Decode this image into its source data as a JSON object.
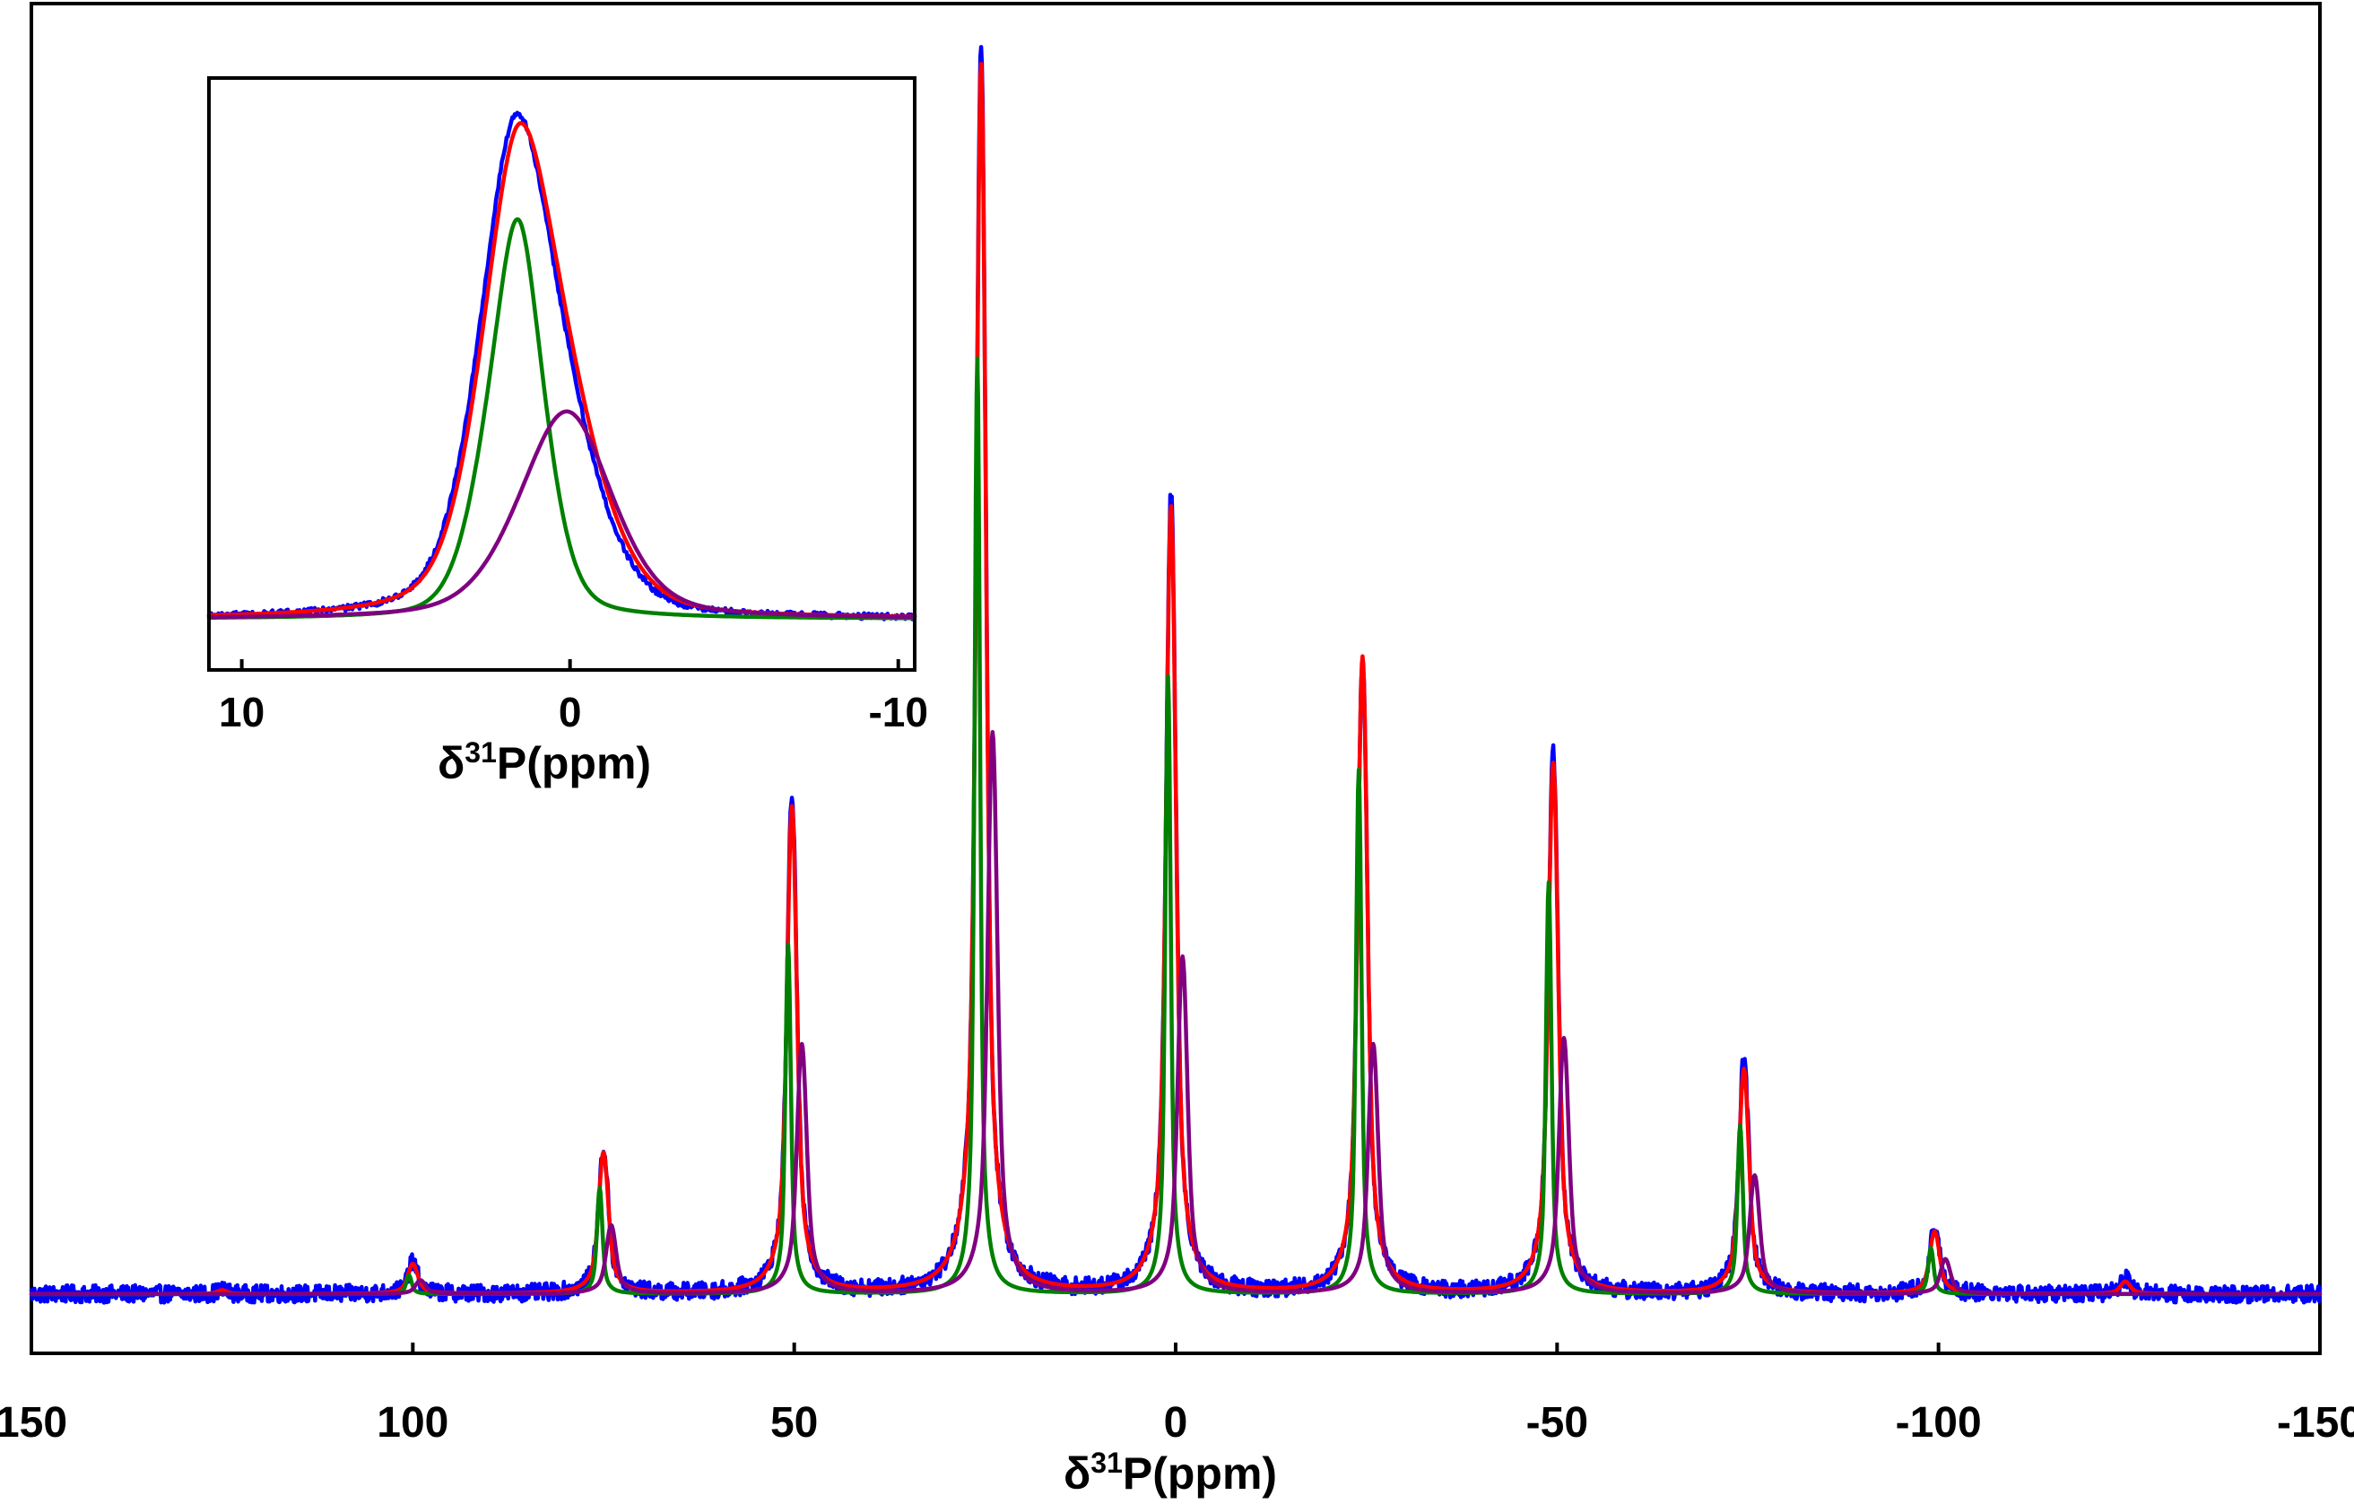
{
  "chart_data": [
    {
      "id": "main",
      "type": "line",
      "title": "",
      "xlabel": {
        "delta": "δ",
        "sup": "31",
        "rest": "P(ppm)"
      },
      "ylabel": "",
      "xlim": [
        150,
        -150
      ],
      "ylim": [
        -0.02,
        1.03
      ],
      "x_ticks": [
        150,
        100,
        50,
        0,
        -50,
        -100,
        -150
      ],
      "x_tick_labels": [
        "150",
        "100",
        "50",
        "0",
        "-50",
        "-100",
        "-150"
      ],
      "grid": false,
      "legend": "none",
      "series": [
        {
          "name": "blue",
          "color": "#0000ff",
          "noise": 0.007,
          "width_scale": 1.0,
          "peaks": [
            [
              125,
              0.003
            ],
            [
              100,
              0.025
            ],
            [
              75,
              0.115
            ],
            [
              50.3,
              0.4
            ],
            [
              25.5,
              1.0
            ],
            [
              0.6,
              0.64
            ],
            [
              -24.5,
              0.51
            ],
            [
              -49.5,
              0.435
            ],
            [
              -74.5,
              0.19
            ],
            [
              -99.5,
              0.055
            ],
            [
              -124.5,
              0.012
            ]
          ]
        },
        {
          "name": "red",
          "color": "#ff0000",
          "noise": 0.0,
          "width_scale": 1.0,
          "peaks": [
            [
              125,
              0.003
            ],
            [
              100,
              0.024
            ],
            [
              75,
              0.113
            ],
            [
              50.3,
              0.39
            ],
            [
              25.5,
              0.985
            ],
            [
              0.6,
              0.63
            ],
            [
              -24.5,
              0.51
            ],
            [
              -49.5,
              0.425
            ],
            [
              -74.5,
              0.18
            ],
            [
              -99.5,
              0.05
            ],
            [
              -124.5,
              0.01
            ]
          ]
        },
        {
          "name": "green",
          "color": "#008000",
          "noise": 0.0,
          "width_scale": 0.55,
          "peaks": [
            [
              100.5,
              0.015
            ],
            [
              75.5,
              0.085
            ],
            [
              50.8,
              0.28
            ],
            [
              26.0,
              0.75
            ],
            [
              1.0,
              0.495
            ],
            [
              -24.0,
              0.42
            ],
            [
              -48.9,
              0.33
            ],
            [
              -74.0,
              0.135
            ],
            [
              -99.0,
              0.037
            ]
          ]
        },
        {
          "name": "purple",
          "color": "#800080",
          "noise": 0.0,
          "width_scale": 1.0,
          "peaks": [
            [
              99.0,
              0.011
            ],
            [
              74.0,
              0.055
            ],
            [
              49.0,
              0.2
            ],
            [
              24.0,
              0.45
            ],
            [
              -0.9,
              0.27
            ],
            [
              -25.9,
              0.2
            ],
            [
              -50.9,
              0.205
            ],
            [
              -75.9,
              0.095
            ],
            [
              -100.9,
              0.028
            ]
          ]
        }
      ]
    },
    {
      "id": "inset",
      "type": "line",
      "title": "",
      "xlabel": {
        "delta": "δ",
        "sup": "31",
        "rest": "P(ppm)"
      },
      "ylabel": "",
      "xlim": [
        11,
        -10.5
      ],
      "ylim": [
        -0.12,
        1.05
      ],
      "x_ticks": [
        10,
        0,
        -10
      ],
      "x_tick_labels": [
        "10",
        "0",
        "-10"
      ],
      "grid": false,
      "legend": "none",
      "series": [
        {
          "name": "blue",
          "color": "#0000ff",
          "center": 1.6,
          "gamma": 1.25,
          "sigma_l": 1.15,
          "sigma_r": 1.65,
          "amp": 1.0,
          "noise": 0.006
        },
        {
          "name": "red",
          "color": "#ff0000",
          "center": 1.5,
          "gamma": 1.3,
          "sigma_l": 1.15,
          "sigma_r": 1.7,
          "amp": 0.98,
          "noise": 0.0
        },
        {
          "name": "green",
          "color": "#008000",
          "center": 1.6,
          "gamma": 0.8,
          "sigma_l": 1.0,
          "sigma_r": 0.85,
          "amp": 0.79,
          "noise": 0.0
        },
        {
          "name": "purple",
          "color": "#800080",
          "center": 0.1,
          "gamma": 1.6,
          "sigma_l": 1.5,
          "sigma_r": 1.4,
          "amp": 0.41,
          "noise": 0.0
        }
      ]
    }
  ]
}
